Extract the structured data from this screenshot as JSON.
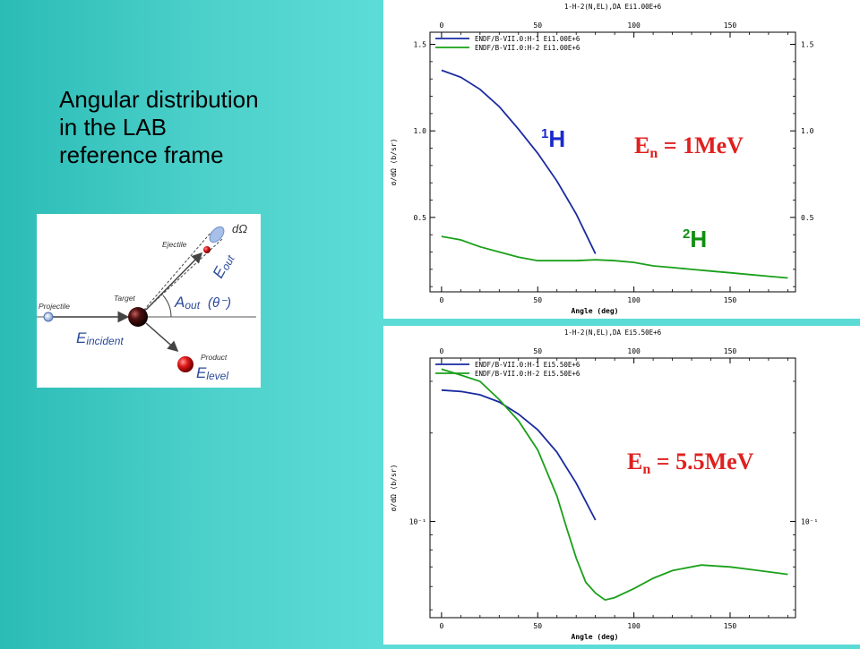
{
  "slide": {
    "title_lines": [
      "Angular distribution",
      "in the LAB",
      "reference frame"
    ]
  },
  "diagram": {
    "labels": {
      "projectile": "Projectile",
      "target": "Target",
      "ejectile": "Ejectile",
      "product": "Product",
      "d_omega": "dΩ",
      "e_incident_main": "E",
      "e_incident_sub": "incident",
      "e_out_main": "E",
      "e_out_sub": "out",
      "a_out_main": "A",
      "a_out_sub": "out",
      "theta": "(θ⁻)",
      "e_level_main": "E",
      "e_level_sub": "level"
    },
    "colors": {
      "arrow": "#444444",
      "label_blue": "#2a4a9a",
      "ball": "#d01818",
      "target_ball": "#400808"
    }
  },
  "colors": {
    "series_h1": "#1a2aa0",
    "series_h2": "#1aa01a",
    "annotation_h1": "#1a2acc",
    "annotation_h2": "#0f8f0f",
    "axes": "#000000"
  },
  "chart_data": [
    {
      "type": "line",
      "title": "1-H-2(N,EL),DA Ei1.00E+6",
      "xlabel": "Angle (deg)",
      "ylabel": "σ/dΩ (b/sr)",
      "xlim": [
        -6,
        184
      ],
      "ylim": [
        0.07,
        1.57
      ],
      "x_ticks": [
        0,
        50,
        100,
        150
      ],
      "y_ticks": [
        0.5,
        1.0,
        1.5
      ],
      "y_tick_labels": [
        "0.5",
        "1.0",
        "1.5"
      ],
      "y_scale": "linear",
      "legend_position": "top-left",
      "series": [
        {
          "name": "ENDF/B-VII.0:H-1 Ei1.00E+6",
          "x": [
            0,
            10,
            20,
            30,
            40,
            50,
            60,
            70,
            80
          ],
          "y": [
            1.35,
            1.31,
            1.24,
            1.14,
            1.01,
            0.87,
            0.71,
            0.52,
            0.29
          ]
        },
        {
          "name": "ENDF/B-VII.0:H-2 Ei1.00E+6",
          "x": [
            0,
            10,
            20,
            30,
            40,
            50,
            60,
            70,
            80,
            90,
            100,
            110,
            120,
            130,
            140,
            150,
            160,
            170,
            180
          ],
          "y": [
            0.39,
            0.37,
            0.33,
            0.3,
            0.27,
            0.25,
            0.25,
            0.25,
            0.255,
            0.25,
            0.24,
            0.22,
            0.21,
            0.2,
            0.19,
            0.18,
            0.17,
            0.16,
            0.15
          ]
        }
      ],
      "annotations": {
        "energy": {
          "main": "E",
          "sub": "n",
          "rest": " = 1MeV"
        },
        "h1": {
          "sup": "1",
          "main": "H"
        },
        "h2": {
          "sup": "2",
          "main": "H"
        }
      }
    },
    {
      "type": "line",
      "title": "1-H-2(N,EL),DA Ei5.50E+6",
      "xlabel": "Angle (deg)",
      "ylabel": "σ/dΩ (b/sr)",
      "xlim": [
        -6,
        184
      ],
      "ylim": [
        0.047,
        0.36
      ],
      "x_ticks": [
        0,
        50,
        100,
        150
      ],
      "y_ticks": [
        0.1
      ],
      "y_tick_labels": [
        "10⁻¹"
      ],
      "y_scale": "log",
      "legend_position": "top-left",
      "series": [
        {
          "name": "ENDF/B-VII.0:H-1 Ei5.50E+6",
          "x": [
            0,
            10,
            20,
            30,
            40,
            50,
            60,
            70,
            80
          ],
          "y": [
            0.28,
            0.277,
            0.27,
            0.255,
            0.232,
            0.205,
            0.172,
            0.135,
            0.101
          ]
        },
        {
          "name": "ENDF/B-VII.0:H-2 Ei5.50E+6",
          "x": [
            0,
            10,
            20,
            30,
            40,
            50,
            60,
            65,
            70,
            75,
            80,
            85,
            90,
            100,
            110,
            120,
            135,
            150,
            165,
            180
          ],
          "y": [
            0.33,
            0.315,
            0.3,
            0.26,
            0.22,
            0.175,
            0.122,
            0.095,
            0.075,
            0.062,
            0.057,
            0.054,
            0.055,
            0.059,
            0.064,
            0.068,
            0.071,
            0.07,
            0.068,
            0.066
          ]
        }
      ],
      "annotations": {
        "energy": {
          "main": "E",
          "sub": "n",
          "rest": " = 5.5MeV"
        }
      }
    }
  ]
}
